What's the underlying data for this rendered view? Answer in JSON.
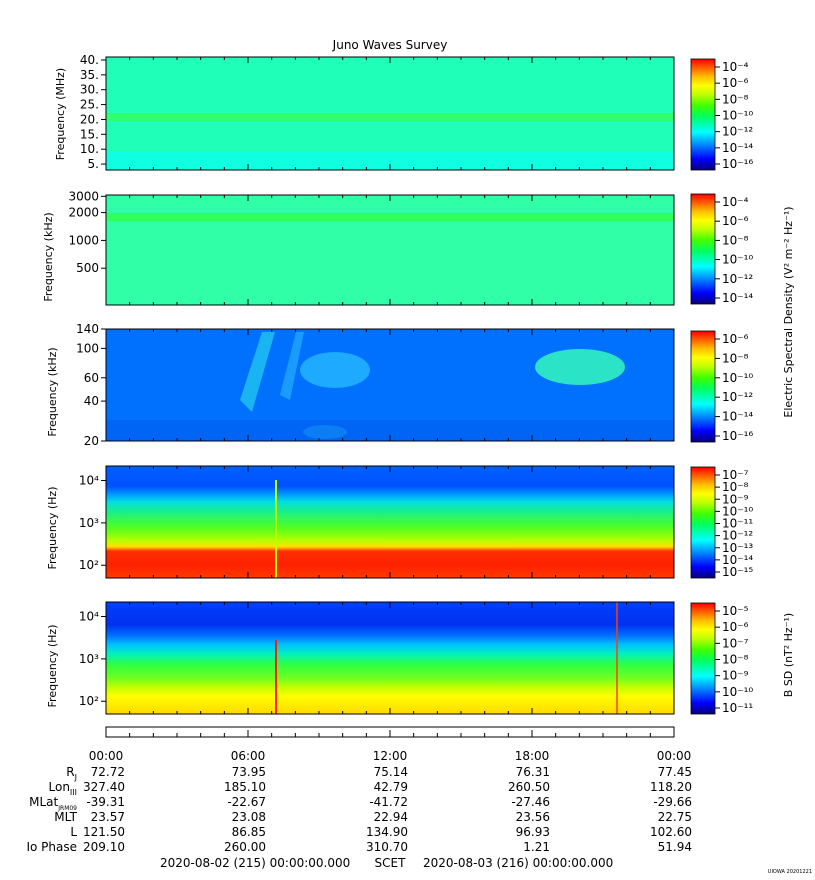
{
  "title": "Juno Waves Survey",
  "watermark": "UIOWA 20201221",
  "colorscale": [
    "#08007a",
    "#0000ff",
    "#0080ff",
    "#00ffff",
    "#00ff60",
    "#40ff00",
    "#c0ff00",
    "#ffff00",
    "#ffc000",
    "#ff6000",
    "#ff0000"
  ],
  "shared_colorbar_label": "Electric Spectral Density (V² m⁻² Hz⁻¹)",
  "chart_data": [
    {
      "type": "heatmap",
      "name": "panel-1",
      "ylabel": "Frequency (MHz)",
      "yscale": "linear",
      "ylim": [
        3,
        41
      ],
      "yticks": [
        {
          "v": 40,
          "label": "40."
        },
        {
          "v": 35,
          "label": "35."
        },
        {
          "v": 30,
          "label": "30."
        },
        {
          "v": 25,
          "label": "25."
        },
        {
          "v": 20,
          "label": "20."
        },
        {
          "v": 15,
          "label": "15."
        },
        {
          "v": 10,
          "label": "10."
        },
        {
          "v": 5,
          "label": "5."
        }
      ],
      "colorbar": {
        "ticks": [
          "10⁻⁴",
          "10⁻⁶",
          "10⁻⁸",
          "10⁻¹⁰",
          "10⁻¹²",
          "10⁻¹⁴",
          "10⁻¹⁶"
        ],
        "label": ""
      }
    },
    {
      "type": "heatmap",
      "name": "panel-2",
      "ylabel": "Frequency (kHz)",
      "yscale": "log",
      "ylim": [
        200,
        3100
      ],
      "yticks": [
        {
          "v": 3000,
          "label": "3000"
        },
        {
          "v": 2000,
          "label": "2000"
        },
        {
          "v": 1000,
          "label": "1000"
        },
        {
          "v": 500,
          "label": "500"
        }
      ],
      "colorbar": {
        "ticks": [
          "10⁻⁴",
          "10⁻⁶",
          "10⁻⁸",
          "10⁻¹⁰",
          "10⁻¹²",
          "10⁻¹⁴"
        ],
        "label": ""
      }
    },
    {
      "type": "heatmap",
      "name": "panel-3",
      "ylabel": "Frequency (kHz)",
      "yscale": "log",
      "ylim": [
        20,
        140
      ],
      "yticks": [
        {
          "v": 140,
          "label": "140"
        },
        {
          "v": 100,
          "label": "100"
        },
        {
          "v": 60,
          "label": "60"
        },
        {
          "v": 40,
          "label": "40"
        },
        {
          "v": 20,
          "label": "20"
        }
      ],
      "colorbar": {
        "ticks": [
          "10⁻⁶",
          "10⁻⁸",
          "10⁻¹⁰",
          "10⁻¹²",
          "10⁻¹⁴",
          "10⁻¹⁶"
        ],
        "label": ""
      }
    },
    {
      "type": "heatmap",
      "name": "panel-4",
      "ylabel": "Frequency (Hz)",
      "yscale": "log",
      "ylim": [
        50,
        22000
      ],
      "yticks": [
        {
          "v": 10000,
          "label": "10⁴"
        },
        {
          "v": 1000,
          "label": "10³"
        },
        {
          "v": 100,
          "label": "10²"
        }
      ],
      "colorbar": {
        "ticks": [
          "10⁻⁷",
          "10⁻⁸",
          "10⁻⁹",
          "10⁻¹⁰",
          "10⁻¹¹",
          "10⁻¹²",
          "10⁻¹³",
          "10⁻¹⁴",
          "10⁻¹⁵"
        ],
        "label": ""
      }
    },
    {
      "type": "heatmap",
      "name": "panel-5",
      "ylabel": "Frequency (Hz)",
      "yscale": "log",
      "ylim": [
        50,
        22000
      ],
      "yticks": [
        {
          "v": 10000,
          "label": "10⁴"
        },
        {
          "v": 1000,
          "label": "10³"
        },
        {
          "v": 100,
          "label": "10²"
        }
      ],
      "colorbar": {
        "ticks": [
          "10⁻⁵",
          "10⁻⁶",
          "10⁻⁷",
          "10⁻⁸",
          "10⁻⁹",
          "10⁻¹⁰",
          "10⁻¹¹"
        ],
        "label": "B SD (nT² Hz⁻¹)"
      }
    }
  ],
  "time_axis": {
    "ticks": [
      "00:00",
      "06:00",
      "12:00",
      "18:00",
      "00:00"
    ],
    "rows": [
      {
        "label": "R",
        "sub": "J",
        "values": [
          "72.72",
          "73.95",
          "75.14",
          "76.31",
          "77.45"
        ]
      },
      {
        "label": "Lon",
        "sub": "III",
        "values": [
          "327.40",
          "185.10",
          "42.79",
          "260.50",
          "118.20"
        ]
      },
      {
        "label": "MLat",
        "sub": "JRM09",
        "values": [
          "-39.31",
          "-22.67",
          "-41.72",
          "-27.46",
          "-29.66"
        ]
      },
      {
        "label": "MLT",
        "sub": "",
        "values": [
          "23.57",
          "23.08",
          "22.94",
          "23.56",
          "22.75"
        ]
      },
      {
        "label": "L",
        "sub": "",
        "values": [
          "121.50",
          "86.85",
          "134.90",
          "96.93",
          "102.60"
        ]
      },
      {
        "label": "Io Phase",
        "sub": "",
        "values": [
          "209.10",
          "260.00",
          "310.70",
          "1.21",
          "51.94"
        ]
      }
    ],
    "footer_start": "2020-08-02 (215) 00:00:00.000",
    "footer_mid": "SCET",
    "footer_end": "2020-08-03 (216) 00:00:00.000"
  }
}
